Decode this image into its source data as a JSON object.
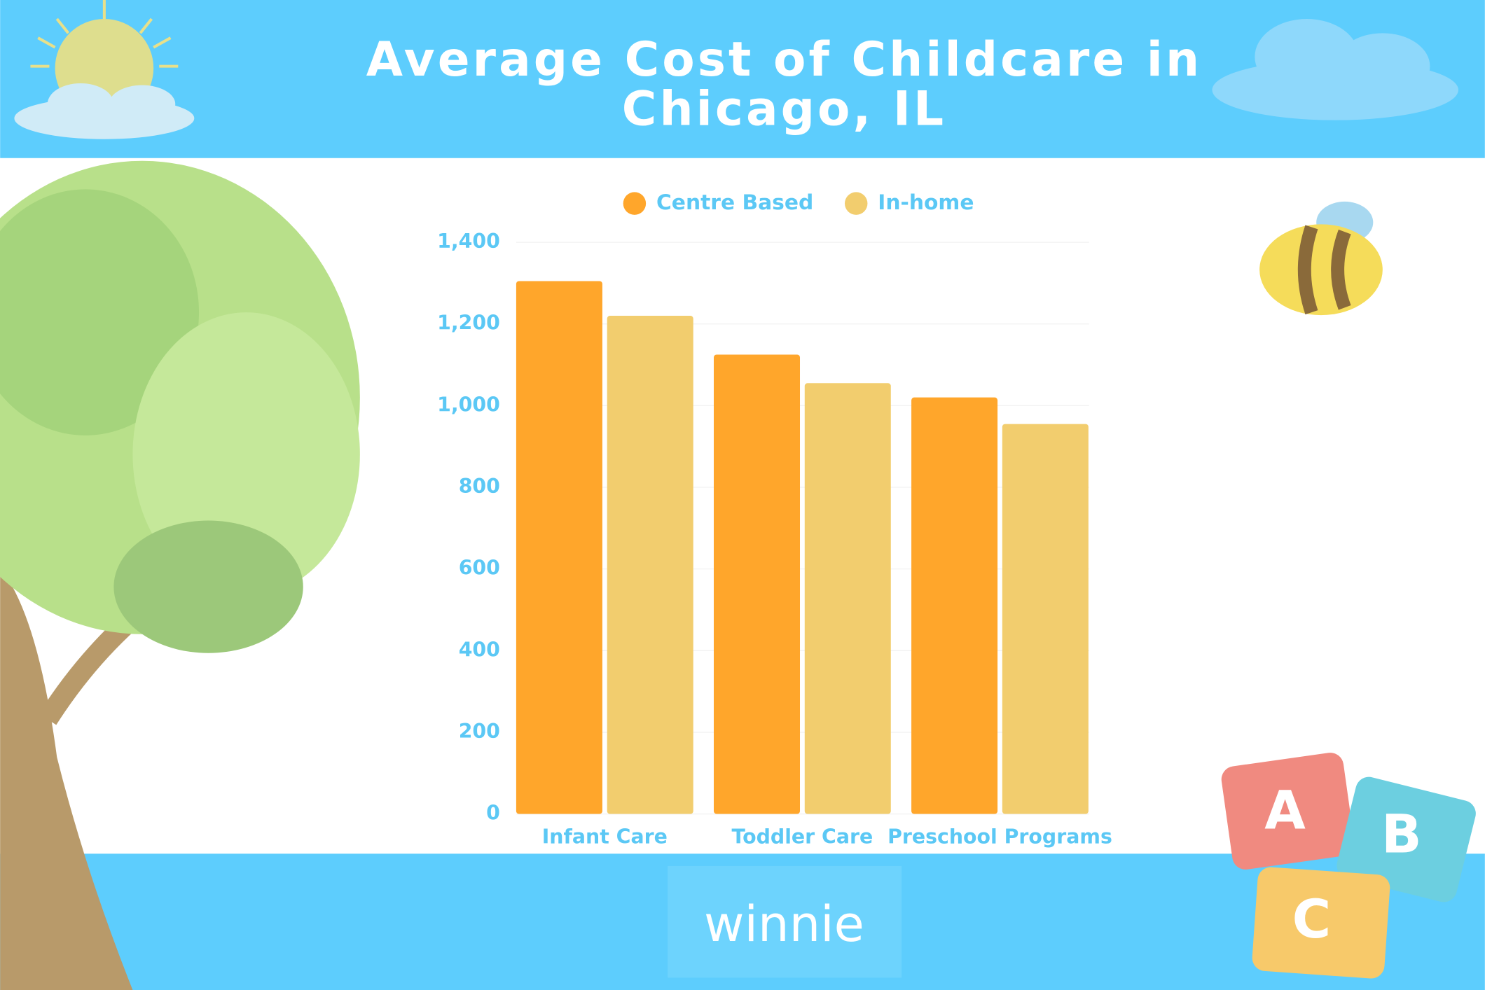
{
  "chart_data": {
    "type": "bar",
    "title": "Average Cost of Childcare in Chicago, IL",
    "categories": [
      "Infant Care",
      "Toddler Care",
      "Preschool Programs"
    ],
    "series": [
      {
        "name": "Centre Based",
        "color": "#ffa62b",
        "values": [
          1305,
          1125,
          1020
        ]
      },
      {
        "name": "In-home",
        "color": "#f2cd6e",
        "values": [
          1220,
          1055,
          955
        ]
      }
    ],
    "ylim": [
      0,
      1400
    ],
    "yticks": [
      0,
      200,
      400,
      600,
      800,
      {
        "value": 1000,
        "label": "1,000"
      },
      {
        "value": 1200,
        "label": "1,200"
      },
      {
        "value": 1400,
        "label": "1,400"
      }
    ],
    "grid": true,
    "legend": "top"
  },
  "logo": "winnie",
  "blocks": [
    "A",
    "B",
    "C"
  ]
}
